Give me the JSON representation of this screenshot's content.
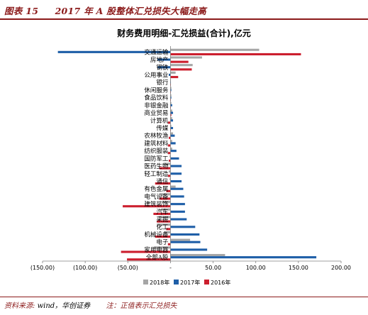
{
  "page_header": {
    "figure_label": "图表 15",
    "figure_title": "2017 年 A 股整体汇兑损失大幅走高"
  },
  "footer": {
    "source_label": "资料来源:",
    "source_text": "wind，华创证券",
    "note": "注：正值表示汇兑损失"
  },
  "colors": {
    "y2018": "#a6a6a6",
    "y2017": "#1f5fa8",
    "y2016": "#cc1f2e"
  },
  "chart_data": {
    "type": "bar",
    "orientation": "horizontal",
    "title": "财务费用明细-汇兑损益(合计),亿元",
    "categories": [
      "交通运输",
      "房地产",
      "钢铁",
      "公用事业",
      "银行",
      "休闲服务",
      "食品饮料",
      "非银金融",
      "商业贸易",
      "计算机",
      "传媒",
      "农林牧渔",
      "建筑材料",
      "纺织服装",
      "国防军工",
      "医药生物",
      "轻工制造",
      "通信",
      "有色金属",
      "电气设备",
      "建筑装饰",
      "汽车",
      "采掘",
      "化工",
      "机械设备",
      "电子",
      "家用电器",
      "全部A股"
    ],
    "series": [
      {
        "name": "2018年",
        "values": [
          104,
          37,
          26,
          6,
          0,
          1,
          1,
          1,
          2,
          2,
          1,
          3,
          2,
          2,
          -1,
          -8,
          -2,
          -1,
          6,
          -11,
          -10,
          -11,
          -14,
          -16,
          -7,
          23,
          -19,
          64
        ]
      },
      {
        "name": "2017年",
        "values": [
          -132,
          -15,
          -15,
          -2,
          0,
          1,
          1,
          2,
          3,
          3,
          3,
          5,
          6,
          7,
          10,
          13,
          13,
          13,
          15,
          16,
          17,
          17,
          19,
          29,
          34,
          35,
          43,
          171
        ]
      },
      {
        "name": "2016年",
        "values": [
          153,
          21,
          25,
          9,
          0,
          0,
          0,
          0,
          1,
          -3,
          0,
          -2,
          -3,
          -3,
          -2,
          -13,
          -3,
          -18,
          -5,
          -13,
          -56,
          -20,
          -16,
          -5,
          -18,
          -3,
          -58,
          -51
        ]
      }
    ],
    "xlim": [
      -150,
      200
    ],
    "xticks": [
      -150,
      -100,
      -50,
      0,
      50,
      100,
      150,
      200
    ],
    "xtick_labels": [
      "(150.00)",
      "(100.00)",
      "(50.00)",
      "-",
      "50.00",
      "100.00",
      "150.00",
      "200.00"
    ],
    "grid": false,
    "legend_position": "bottom"
  }
}
